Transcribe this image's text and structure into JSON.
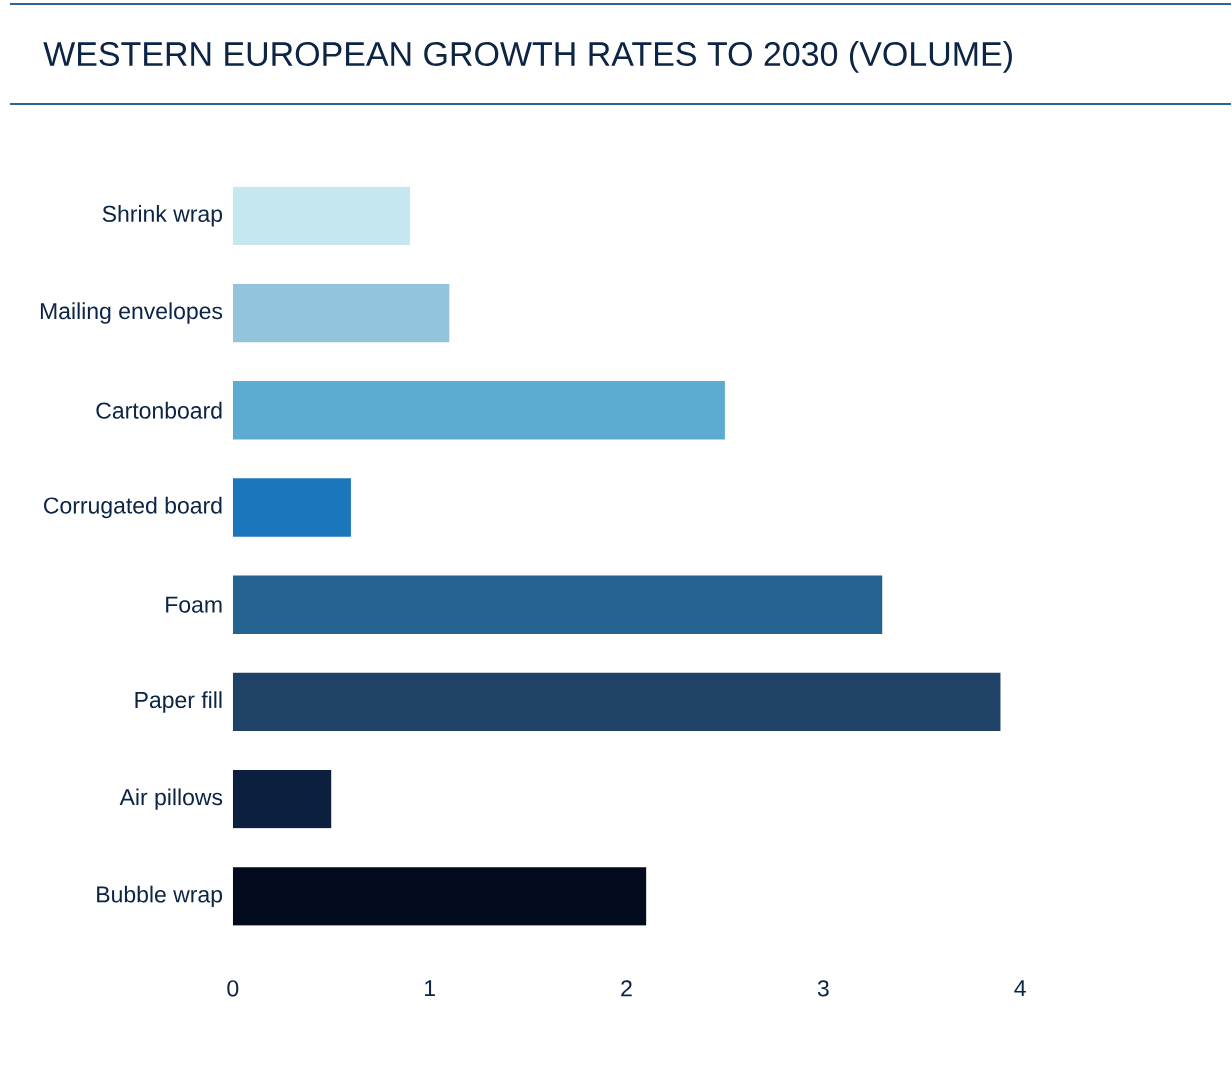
{
  "chart_data": {
    "type": "bar",
    "orientation": "horizontal",
    "title": "WESTERN EUROPEAN GROWTH RATES TO 2030 (VOLUME)",
    "categories": [
      "Shrink wrap",
      "Mailing envelopes",
      "Cartonboard",
      "Corrugated board",
      "Foam",
      "Paper fill",
      "Air pillows",
      "Bubble wrap"
    ],
    "values": [
      0.9,
      1.1,
      2.5,
      0.6,
      3.3,
      3.9,
      0.5,
      2.1
    ],
    "colors": [
      "#c5e7f0",
      "#92c5dc",
      "#5eabd2",
      "#1b76bb",
      "#236291",
      "#1f4266",
      "#0c1f3f",
      "#020a1e"
    ],
    "xlim": [
      0,
      4
    ],
    "xticks": [
      0,
      1,
      2,
      3,
      4
    ]
  }
}
